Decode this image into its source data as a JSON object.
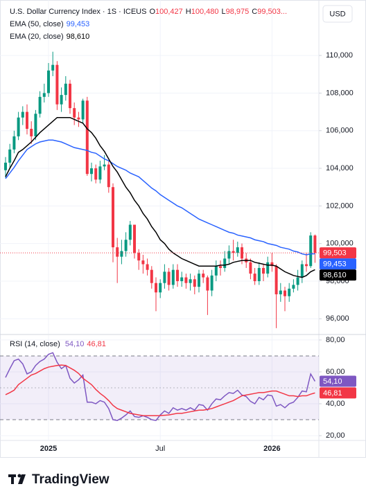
{
  "header": {
    "title": "U.S. Dollar Currency Index · 1S · ICEUS",
    "ohlc": [
      {
        "label": "O",
        "value": "100,427"
      },
      {
        "label": "H",
        "value": "100,480"
      },
      {
        "label": "L",
        "value": "98,975"
      },
      {
        "label": "C",
        "value": "99,503..."
      }
    ],
    "currency": "USD"
  },
  "brand": "TradingView",
  "chart_data": [
    {
      "type": "candlestick",
      "categories": [
        null,
        null,
        null,
        null,
        null,
        null,
        null,
        null,
        null,
        null,
        null,
        null,
        null,
        null,
        null,
        null,
        null,
        null,
        null,
        null,
        null,
        null,
        null,
        null,
        null,
        null,
        null,
        null,
        null,
        null,
        null,
        null,
        null,
        null,
        null,
        null,
        null,
        null,
        null,
        null,
        null,
        null,
        null,
        null,
        null,
        null,
        null,
        null,
        null,
        null,
        null,
        null,
        null,
        null,
        null,
        null,
        null,
        null,
        null,
        null,
        null,
        null,
        null,
        null,
        null,
        null,
        null,
        null,
        null,
        null,
        null,
        null,
        null
      ],
      "open": [
        103.9,
        104.3,
        105.0,
        105.7,
        106.7,
        107.0,
        106.1,
        105.7,
        106.9,
        107.8,
        108.0,
        109.2,
        109.5,
        107.4,
        107.9,
        108.5,
        107.2,
        106.7,
        106.6,
        107.6,
        103.7,
        104.0,
        103.4,
        104.1,
        104.2,
        103.0,
        99.8,
        99.3,
        99.6,
        100.2,
        101.0,
        99.5,
        99.1,
        98.9,
        98.6,
        97.9,
        97.4,
        97.9,
        98.5,
        97.8,
        98.6,
        98.0,
        98.2,
        97.9,
        98.1,
        97.7,
        98.4,
        98.2,
        97.5,
        98.3,
        98.8,
        98.7,
        99.2,
        99.6,
        99.5,
        99.8,
        99.2,
        99.0,
        98.4,
        98.0,
        98.7,
        98.4,
        99.0,
        98.8,
        97.3,
        97.5,
        97.2,
        97.6,
        97.8,
        98.2,
        98.9,
        98.8,
        100.427
      ],
      "high": [
        104.6,
        105.3,
        106.0,
        107.0,
        107.3,
        107.4,
        106.5,
        107.1,
        108.1,
        108.5,
        109.6,
        110.2,
        109.7,
        108.3,
        108.9,
        108.7,
        107.5,
        107.0,
        107.7,
        107.8,
        104.3,
        104.2,
        104.4,
        104.7,
        104.4,
        103.2,
        100.3,
        100.2,
        100.6,
        101.2,
        101.0,
        99.7,
        99.4,
        99.2,
        98.8,
        98.2,
        98.1,
        98.9,
        98.7,
        98.9,
        98.9,
        98.5,
        98.4,
        98.4,
        98.3,
        98.6,
        98.6,
        98.3,
        98.6,
        99.1,
        99.1,
        99.6,
        99.9,
        100.2,
        100.1,
        100.0,
        99.5,
        99.2,
        98.7,
        99.0,
        98.9,
        99.3,
        99.5,
        98.9,
        97.9,
        97.7,
        97.9,
        98.1,
        98.6,
        99.1,
        99.5,
        100.6,
        100.48
      ],
      "low": [
        103.5,
        104.0,
        104.8,
        105.5,
        106.3,
        105.8,
        105.3,
        105.5,
        106.7,
        107.5,
        107.8,
        108.9,
        107.1,
        107.0,
        107.6,
        106.9,
        106.3,
        106.2,
        106.4,
        103.6,
        103.3,
        103.2,
        103.2,
        103.9,
        102.7,
        99.0,
        97.9,
        98.9,
        99.3,
        99.9,
        99.2,
        98.6,
        98.4,
        98.3,
        97.6,
        96.4,
        97.1,
        97.6,
        97.5,
        97.6,
        97.7,
        97.7,
        97.6,
        97.5,
        97.3,
        97.4,
        97.9,
        96.2,
        97.2,
        98.0,
        98.3,
        98.5,
        98.9,
        99.1,
        99.3,
        98.9,
        98.7,
        98.1,
        97.8,
        97.8,
        98.0,
        98.2,
        98.5,
        95.5,
        96.9,
        96.4,
        96.9,
        97.4,
        97.5,
        97.9,
        98.5,
        98.7,
        98.975
      ],
      "close": [
        104.3,
        105.0,
        105.7,
        106.7,
        107.0,
        106.1,
        105.7,
        106.9,
        107.8,
        108.0,
        109.2,
        109.5,
        107.4,
        107.9,
        108.5,
        107.2,
        106.7,
        106.6,
        107.6,
        103.7,
        104.0,
        103.4,
        104.1,
        104.2,
        103.0,
        99.8,
        99.3,
        99.6,
        100.2,
        101.0,
        99.5,
        99.1,
        98.9,
        98.6,
        97.9,
        97.4,
        97.9,
        98.5,
        97.8,
        98.6,
        98.0,
        98.2,
        97.9,
        98.1,
        97.7,
        98.4,
        98.2,
        97.5,
        98.3,
        98.8,
        98.7,
        99.2,
        99.6,
        99.5,
        99.8,
        99.2,
        99.0,
        98.4,
        98.0,
        98.7,
        98.4,
        99.0,
        98.8,
        97.3,
        97.5,
        97.2,
        97.6,
        97.8,
        98.2,
        98.9,
        98.8,
        100.427,
        99.503
      ],
      "close_label": "99,503",
      "up_color": "#089981",
      "down_color": "#f23645",
      "series": [
        {
          "name": "EMA (50, close)",
          "color": "#2962ff",
          "last_label": "99,453",
          "values": [
            103.45,
            103.75,
            104.05,
            104.4,
            104.7,
            105.0,
            105.15,
            105.3,
            105.4,
            105.45,
            105.5,
            105.5,
            105.45,
            105.4,
            105.3,
            105.2,
            105.1,
            105.05,
            105.0,
            104.95,
            104.85,
            104.8,
            104.65,
            104.5,
            104.4,
            104.25,
            104.1,
            104.0,
            103.9,
            103.75,
            103.65,
            103.55,
            103.35,
            103.15,
            102.95,
            102.8,
            102.6,
            102.45,
            102.3,
            102.15,
            102.0,
            101.9,
            101.75,
            101.6,
            101.45,
            101.3,
            101.2,
            101.1,
            101.0,
            100.9,
            100.8,
            100.7,
            100.6,
            100.55,
            100.45,
            100.4,
            100.35,
            100.3,
            100.2,
            100.15,
            100.1,
            100.0,
            99.95,
            99.9,
            99.8,
            99.75,
            99.7,
            99.6,
            99.55,
            99.45,
            99.4,
            99.45,
            99.453
          ]
        },
        {
          "name": "EMA (20, close)",
          "color": "#000000",
          "last_label": "98,610",
          "values": [
            103.55,
            104.0,
            104.4,
            104.85,
            105.0,
            105.2,
            105.4,
            105.65,
            105.9,
            106.1,
            106.3,
            106.5,
            106.7,
            106.7,
            106.7,
            106.7,
            106.6,
            106.5,
            106.4,
            106.1,
            105.9,
            105.6,
            105.2,
            104.9,
            104.5,
            104.1,
            103.8,
            103.4,
            103.0,
            102.7,
            102.3,
            102.0,
            101.6,
            101.3,
            100.9,
            100.6,
            100.2,
            100.0,
            99.7,
            99.5,
            99.35,
            99.2,
            99.1,
            99.0,
            98.9,
            98.8,
            98.8,
            98.8,
            98.8,
            98.8,
            98.85,
            98.85,
            98.9,
            99.0,
            99.05,
            99.1,
            99.1,
            99.1,
            99.0,
            98.95,
            98.9,
            98.85,
            98.85,
            98.8,
            98.65,
            98.5,
            98.4,
            98.3,
            98.25,
            98.2,
            98.3,
            98.5,
            98.61
          ]
        }
      ],
      "ylim": [
        95.2,
        112.95
      ],
      "yticks": [
        {
          "value": 96,
          "label": "96,000"
        },
        {
          "value": 98,
          "label": "98,000"
        },
        {
          "value": 100,
          "label": "100,000"
        },
        {
          "value": 102,
          "label": "102,000"
        },
        {
          "value": 104,
          "label": "104,000"
        },
        {
          "value": 106,
          "label": "106,000"
        },
        {
          "value": 108,
          "label": "108,000"
        },
        {
          "value": 110,
          "label": "110,000"
        }
      ],
      "xticks": [
        {
          "value": 10,
          "label": "2025"
        },
        {
          "value": 36,
          "label": "Jul"
        },
        {
          "value": 62,
          "label": "2026"
        }
      ],
      "grid": true
    },
    {
      "type": "line",
      "title": "RSI (14, close)",
      "series": [
        {
          "color": "#7e57c2",
          "last_label": "54,10",
          "values": [
            56.5,
            62,
            67,
            68,
            65,
            58.7,
            60,
            64,
            66.5,
            68,
            71,
            72,
            66,
            62,
            64,
            56,
            53,
            55,
            58,
            41,
            41,
            40,
            42,
            41,
            37,
            30,
            29.5,
            31,
            33,
            35.5,
            32,
            31.5,
            32.5,
            31.5,
            30,
            29.5,
            33,
            35.5,
            34,
            37.5,
            36,
            37,
            36,
            37.5,
            36,
            39.5,
            39,
            36,
            40,
            43,
            42.5,
            45,
            47,
            46.5,
            48.5,
            45.5,
            44.5,
            41.5,
            40,
            44,
            42.5,
            45.5,
            45,
            38.5,
            39.5,
            37.5,
            40,
            41,
            44,
            48,
            47.5,
            58.7,
            54.1
          ]
        },
        {
          "color": "#f23645",
          "last_label": "46,81",
          "values": [
            45.7,
            47,
            48.5,
            52,
            54,
            56,
            58,
            59,
            60.5,
            62,
            63,
            63.5,
            64,
            64.3,
            64,
            62.5,
            61,
            59,
            56,
            54,
            52,
            49,
            46.5,
            44.5,
            42,
            39,
            37,
            36,
            35,
            34,
            33.5,
            33,
            32.6,
            32.5,
            32.5,
            32.5,
            32.6,
            32.8,
            33,
            33.5,
            34,
            34,
            34.5,
            35,
            35.5,
            36,
            36,
            36.5,
            37,
            38,
            39,
            40,
            41,
            42,
            43.5,
            45,
            45.5,
            46,
            46.5,
            47,
            47,
            47.5,
            48,
            48,
            47,
            46,
            45,
            45,
            44.5,
            45,
            45,
            46,
            46.81
          ]
        }
      ],
      "band": [
        30,
        70
      ],
      "midline": 50,
      "band_color": "#7e57c2",
      "ylim": [
        17,
        83
      ],
      "yticks": [
        {
          "value": 20,
          "label": "20,00"
        },
        {
          "value": 40,
          "label": "40,00"
        },
        {
          "value": 60,
          "label": "60,00"
        },
        {
          "value": 80,
          "label": "80,00"
        }
      ]
    }
  ]
}
